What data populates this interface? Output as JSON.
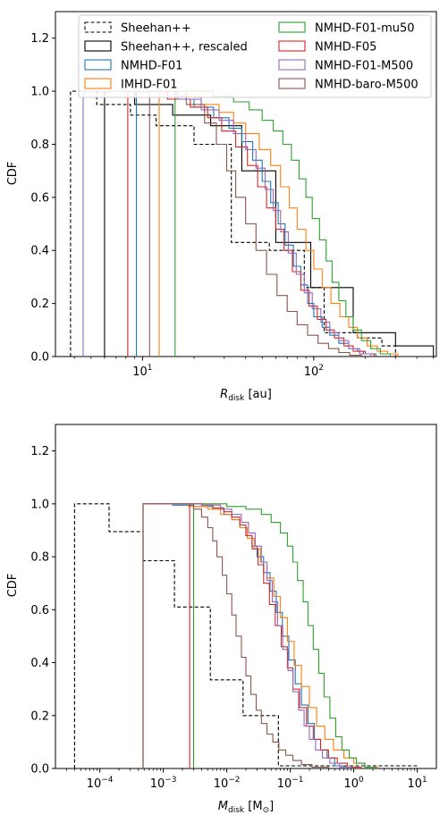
{
  "chart_data": [
    {
      "type": "step",
      "xlabel_main": "R",
      "xlabel_sub": "disk",
      "xlabel_unit": " [au]",
      "ylabel": "CDF",
      "xscale": "log",
      "xlim": [
        3.1,
        520
      ],
      "ylim": [
        0,
        1.3
      ],
      "xticks": [
        {
          "value": 10,
          "base": "10",
          "exp": "1"
        },
        {
          "value": 100,
          "base": "10",
          "exp": "2"
        }
      ],
      "yticks": [
        "0.0",
        "0.2",
        "0.4",
        "0.6",
        "0.8",
        "1.0",
        "1.2"
      ],
      "legend": {
        "position": "top",
        "columns": 2
      },
      "series": [
        {
          "name": "Sheehan++",
          "color": "#000000",
          "dashed": true,
          "x": [
            3.8,
            5.4,
            8.5,
            12,
            20,
            33,
            55,
            88,
            115,
            180,
            250,
            300
          ],
          "y": [
            1.0,
            0.95,
            0.91,
            0.87,
            0.8,
            0.43,
            0.4,
            0.26,
            0.09,
            0.07,
            0.04,
            0.0
          ]
        },
        {
          "name": "Sheehan++, rescaled",
          "color": "#000000",
          "dashed": false,
          "x": [
            6.0,
            9.0,
            15,
            25,
            38,
            60,
            96,
            170,
            300,
            500
          ],
          "y": [
            1.0,
            0.95,
            0.91,
            0.87,
            0.7,
            0.43,
            0.26,
            0.09,
            0.04,
            0.0
          ]
        },
        {
          "name": "NMHD-F01",
          "color": "#1f77b4",
          "dashed": false,
          "x": [
            9.2,
            14,
            20,
            26,
            32,
            38,
            44,
            50,
            56,
            62,
            68,
            76,
            84,
            92,
            100,
            112,
            124,
            140,
            160,
            180,
            200,
            230
          ],
          "y": [
            1.0,
            0.97,
            0.94,
            0.9,
            0.86,
            0.81,
            0.74,
            0.66,
            0.58,
            0.5,
            0.42,
            0.34,
            0.27,
            0.2,
            0.15,
            0.11,
            0.08,
            0.05,
            0.03,
            0.02,
            0.01,
            0.0
          ]
        },
        {
          "name": "IMHD-F01",
          "color": "#ff7f0e",
          "dashed": false,
          "x": [
            12.5,
            16,
            22,
            28,
            34,
            40,
            48,
            56,
            64,
            72,
            80,
            90,
            100,
            112,
            126,
            142,
            160,
            180,
            205,
            235,
            270,
            310
          ],
          "y": [
            1.0,
            0.98,
            0.95,
            0.92,
            0.88,
            0.84,
            0.78,
            0.72,
            0.64,
            0.56,
            0.48,
            0.4,
            0.33,
            0.26,
            0.2,
            0.15,
            0.11,
            0.07,
            0.04,
            0.02,
            0.01,
            0.0
          ]
        },
        {
          "name": "NMHD-F01-mu50",
          "color": "#2ca02c",
          "dashed": false,
          "x": [
            15.5,
            26,
            34,
            42,
            50,
            58,
            66,
            74,
            82,
            90,
            98,
            108,
            118,
            128,
            140,
            154,
            170,
            190,
            215,
            245,
            280
          ],
          "y": [
            1.0,
            0.98,
            0.96,
            0.93,
            0.89,
            0.85,
            0.8,
            0.74,
            0.67,
            0.6,
            0.52,
            0.44,
            0.36,
            0.28,
            0.21,
            0.15,
            0.1,
            0.06,
            0.03,
            0.01,
            0.0
          ]
        },
        {
          "name": "NMHD-F05",
          "color": "#d62728",
          "dashed": false,
          "x": [
            8.2,
            14,
            19,
            24,
            29,
            35,
            41,
            47,
            53,
            60,
            67,
            75,
            84,
            94,
            105,
            118,
            132,
            150,
            170,
            195,
            225
          ],
          "y": [
            1.0,
            0.97,
            0.94,
            0.9,
            0.85,
            0.79,
            0.72,
            0.64,
            0.56,
            0.48,
            0.4,
            0.32,
            0.25,
            0.19,
            0.14,
            0.1,
            0.07,
            0.04,
            0.02,
            0.01,
            0.0
          ]
        },
        {
          "name": "NMHD-F01-M500",
          "color": "#9467bd",
          "dashed": false,
          "x": [
            4.5,
            16,
            22,
            28,
            34,
            40,
            46,
            52,
            58,
            64,
            71,
            79,
            88,
            98,
            110,
            124,
            140,
            160,
            185,
            215
          ],
          "y": [
            1.0,
            0.97,
            0.93,
            0.89,
            0.84,
            0.78,
            0.71,
            0.63,
            0.55,
            0.47,
            0.39,
            0.31,
            0.24,
            0.18,
            0.13,
            0.09,
            0.06,
            0.03,
            0.01,
            0.0
          ]
        },
        {
          "name": "NMHD-baro-M500",
          "color": "#8c564b",
          "dashed": false,
          "x": [
            11,
            18,
            23,
            27,
            31,
            35,
            40,
            46,
            53,
            61,
            70,
            80,
            92,
            106,
            122,
            140,
            162,
            190
          ],
          "y": [
            1.0,
            0.95,
            0.88,
            0.8,
            0.7,
            0.6,
            0.5,
            0.4,
            0.31,
            0.23,
            0.17,
            0.12,
            0.08,
            0.05,
            0.03,
            0.015,
            0.005,
            0.0
          ]
        }
      ]
    },
    {
      "type": "step",
      "xlabel_main": "M",
      "xlabel_sub": "disk",
      "xlabel_unit_pre": " [M",
      "xlabel_unit_sub": "⊙",
      "xlabel_unit_post": "]",
      "ylabel": "CDF",
      "xscale": "log",
      "xlim": [
        2e-05,
        20
      ],
      "ylim": [
        0,
        1.3
      ],
      "xticks": [
        {
          "value": 0.0001,
          "base": "10",
          "exp": "−4"
        },
        {
          "value": 0.001,
          "base": "10",
          "exp": "−3"
        },
        {
          "value": 0.01,
          "base": "10",
          "exp": "−2"
        },
        {
          "value": 0.1,
          "base": "10",
          "exp": "−1"
        },
        {
          "value": 1,
          "base": "10",
          "exp": "0"
        },
        {
          "value": 10,
          "base": "10",
          "exp": "1"
        }
      ],
      "yticks": [
        "0.0",
        "0.2",
        "0.4",
        "0.6",
        "0.8",
        "1.0",
        "1.2"
      ],
      "series": [
        {
          "name": "Sheehan++",
          "color": "#000000",
          "dashed": true,
          "x": [
            4e-05,
            0.00014,
            0.00048,
            0.0015,
            0.0055,
            0.018,
            0.065,
            10
          ],
          "y": [
            1.0,
            0.895,
            0.785,
            0.61,
            0.335,
            0.2,
            0.01,
            0.0
          ]
        },
        {
          "name": "NMHD-F01",
          "color": "#1f77b4",
          "dashed": false,
          "x": [
            0.00048,
            0.0014,
            0.003,
            0.006,
            0.009,
            0.012,
            0.016,
            0.02,
            0.025,
            0.03,
            0.038,
            0.048,
            0.06,
            0.075,
            0.095,
            0.12,
            0.15,
            0.19,
            0.24,
            0.3,
            0.38,
            0.5,
            0.7
          ],
          "y": [
            1.0,
            0.995,
            0.99,
            0.98,
            0.96,
            0.94,
            0.91,
            0.88,
            0.84,
            0.8,
            0.74,
            0.67,
            0.59,
            0.5,
            0.41,
            0.32,
            0.24,
            0.17,
            0.11,
            0.07,
            0.04,
            0.01,
            0.0
          ]
        },
        {
          "name": "IMHD-F01",
          "color": "#ff7f0e",
          "dashed": false,
          "x": [
            0.00048,
            0.0025,
            0.005,
            0.008,
            0.012,
            0.016,
            0.021,
            0.027,
            0.034,
            0.043,
            0.055,
            0.07,
            0.09,
            0.115,
            0.15,
            0.2,
            0.26,
            0.35,
            0.48,
            0.7,
            1.0,
            1.5,
            2.4
          ],
          "y": [
            1.0,
            0.99,
            0.98,
            0.96,
            0.94,
            0.91,
            0.87,
            0.83,
            0.78,
            0.72,
            0.65,
            0.57,
            0.48,
            0.39,
            0.31,
            0.23,
            0.16,
            0.11,
            0.07,
            0.04,
            0.02,
            0.005,
            0.0
          ]
        },
        {
          "name": "NMHD-F01-mu50",
          "color": "#2ca02c",
          "dashed": false,
          "x": [
            0.003,
            0.01,
            0.02,
            0.035,
            0.05,
            0.07,
            0.09,
            0.11,
            0.13,
            0.16,
            0.19,
            0.23,
            0.28,
            0.34,
            0.42,
            0.52,
            0.65,
            0.85,
            1.1,
            1.5,
            2.2
          ],
          "y": [
            1.0,
            0.99,
            0.98,
            0.96,
            0.93,
            0.89,
            0.84,
            0.78,
            0.71,
            0.63,
            0.54,
            0.45,
            0.36,
            0.27,
            0.19,
            0.12,
            0.07,
            0.04,
            0.02,
            0.005,
            0.0
          ]
        },
        {
          "name": "NMHD-F05",
          "color": "#d62728",
          "dashed": false,
          "x": [
            0.0026,
            0.004,
            0.006,
            0.009,
            0.012,
            0.016,
            0.02,
            0.025,
            0.031,
            0.038,
            0.047,
            0.058,
            0.072,
            0.09,
            0.11,
            0.14,
            0.18,
            0.23,
            0.3,
            0.4,
            0.55,
            0.8,
            1.3
          ],
          "y": [
            1.0,
            0.995,
            0.985,
            0.97,
            0.95,
            0.92,
            0.88,
            0.83,
            0.77,
            0.7,
            0.62,
            0.54,
            0.46,
            0.38,
            0.3,
            0.23,
            0.16,
            0.11,
            0.07,
            0.04,
            0.02,
            0.005,
            0.0
          ]
        },
        {
          "name": "NMHD-F01-M500",
          "color": "#9467bd",
          "dashed": false,
          "x": [
            0.00048,
            0.004,
            0.008,
            0.012,
            0.017,
            0.022,
            0.028,
            0.035,
            0.043,
            0.052,
            0.063,
            0.076,
            0.092,
            0.11,
            0.135,
            0.165,
            0.2,
            0.25,
            0.32,
            0.42,
            0.6,
            0.9
          ],
          "y": [
            1.0,
            0.995,
            0.98,
            0.96,
            0.93,
            0.89,
            0.84,
            0.78,
            0.71,
            0.63,
            0.54,
            0.45,
            0.37,
            0.29,
            0.22,
            0.16,
            0.11,
            0.07,
            0.04,
            0.02,
            0.005,
            0.0
          ]
        },
        {
          "name": "NMHD-baro-M500",
          "color": "#8c564b",
          "dashed": false,
          "x": [
            0.00048,
            0.003,
            0.004,
            0.005,
            0.006,
            0.007,
            0.0085,
            0.01,
            0.012,
            0.014,
            0.017,
            0.02,
            0.024,
            0.029,
            0.035,
            0.043,
            0.053,
            0.066,
            0.085,
            0.11,
            0.15,
            0.22,
            0.4
          ],
          "y": [
            1.0,
            0.98,
            0.95,
            0.91,
            0.86,
            0.8,
            0.73,
            0.66,
            0.58,
            0.5,
            0.42,
            0.35,
            0.28,
            0.22,
            0.17,
            0.13,
            0.1,
            0.07,
            0.05,
            0.03,
            0.015,
            0.005,
            0.0
          ]
        }
      ]
    }
  ]
}
